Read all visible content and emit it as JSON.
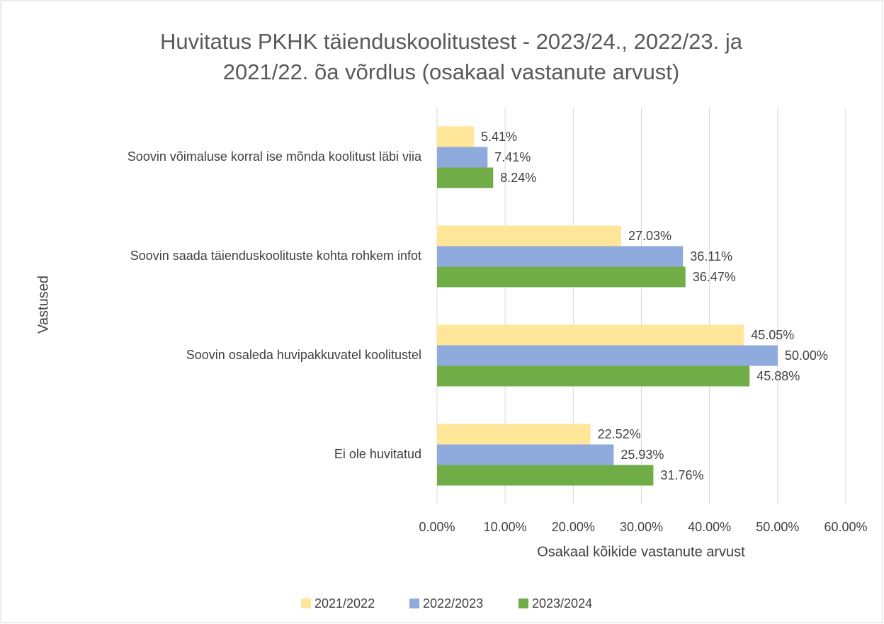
{
  "chart_data": {
    "type": "bar",
    "orientation": "horizontal",
    "title": "Huvitatus PKHK täienduskoolitustest - 2023/24., 2022/23. ja 2021/22. õa võrdlus (osakaal vastanute arvust)",
    "x_label": "Osakaal kõikide vastanute arvust",
    "y_label": "Vastused",
    "categories": [
      "Soovin võimaluse korral ise mõnda koolitust läbi viia",
      "Soovin saada täienduskoolituste kohta rohkem infot",
      "Soovin osaleda huvipakkuvatel koolitustel",
      "Ei ole huvitatud"
    ],
    "series": [
      {
        "name": "2021/2022",
        "color": "#ffe699",
        "values": [
          5.41,
          27.03,
          45.05,
          22.52
        ],
        "value_labels": [
          "5.41%",
          "27.03%",
          "45.05%",
          "22.52%"
        ]
      },
      {
        "name": "2022/2023",
        "color": "#8faadc",
        "values": [
          7.41,
          36.11,
          50.0,
          25.93
        ],
        "value_labels": [
          "7.41%",
          "36.11%",
          "50.00%",
          "25.93%"
        ]
      },
      {
        "name": "2023/2024",
        "color": "#70ad47",
        "values": [
          8.24,
          36.47,
          45.88,
          31.76
        ],
        "value_labels": [
          "8.24%",
          "36.47%",
          "45.88%",
          "31.76%"
        ]
      }
    ],
    "xlim": [
      0,
      60
    ],
    "xticks": [
      {
        "value": 0,
        "label": "0.00%"
      },
      {
        "value": 10,
        "label": "10.00%"
      },
      {
        "value": 20,
        "label": "20.00%"
      },
      {
        "value": 30,
        "label": "30.00%"
      },
      {
        "value": 40,
        "label": "40.00%"
      },
      {
        "value": 50,
        "label": "50.00%"
      },
      {
        "value": 60,
        "label": "60.00%"
      }
    ],
    "grid": true,
    "legend": "bottom"
  }
}
